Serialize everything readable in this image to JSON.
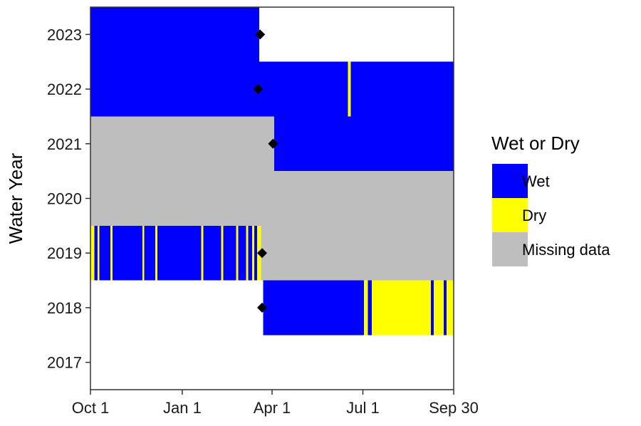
{
  "chart_data": {
    "type": "heatmap",
    "title": "",
    "xlabel": "",
    "ylabel": "Water Year",
    "x_unit": "day of water year (Oct 1 = 1)",
    "xlim": [
      1,
      365
    ],
    "x_ticks": [
      {
        "value": 1,
        "label": "Oct 1"
      },
      {
        "value": 93,
        "label": "Jan 1"
      },
      {
        "value": 183,
        "label": "Apr 1"
      },
      {
        "value": 274,
        "label": "Jul 1"
      },
      {
        "value": 365,
        "label": "Sep 30"
      }
    ],
    "y_ticks": [
      "2017",
      "2018",
      "2019",
      "2020",
      "2021",
      "2022",
      "2023"
    ],
    "grid": false,
    "legend": {
      "title": "Wet or Dry",
      "placement": "right",
      "entries": [
        {
          "key": "wet",
          "label": "Wet",
          "color": "#0000ff"
        },
        {
          "key": "dry",
          "label": "Dry",
          "color": "#ffff00"
        },
        {
          "key": "missing",
          "label": "Missing data",
          "color": "#bebebe"
        }
      ]
    },
    "rows": [
      {
        "year": "2023",
        "segments": [
          {
            "start": 1,
            "end": 170,
            "state": "wet"
          }
        ]
      },
      {
        "year": "2022",
        "segments": [
          {
            "start": 1,
            "end": 259,
            "state": "wet"
          },
          {
            "start": 259,
            "end": 262,
            "state": "dry"
          },
          {
            "start": 262,
            "end": 365,
            "state": "wet"
          }
        ]
      },
      {
        "year": "2021",
        "segments": [
          {
            "start": 1,
            "end": 185,
            "state": "missing"
          },
          {
            "start": 185,
            "end": 365,
            "state": "wet"
          }
        ]
      },
      {
        "year": "2020",
        "segments": [
          {
            "start": 1,
            "end": 365,
            "state": "missing"
          }
        ]
      },
      {
        "year": "2019",
        "segments": [
          {
            "start": 1,
            "end": 5,
            "state": "dry"
          },
          {
            "start": 5,
            "end": 8,
            "state": "wet"
          },
          {
            "start": 8,
            "end": 10,
            "state": "dry"
          },
          {
            "start": 10,
            "end": 21,
            "state": "wet"
          },
          {
            "start": 21,
            "end": 23,
            "state": "dry"
          },
          {
            "start": 23,
            "end": 53,
            "state": "wet"
          },
          {
            "start": 53,
            "end": 55,
            "state": "dry"
          },
          {
            "start": 55,
            "end": 66,
            "state": "wet"
          },
          {
            "start": 66,
            "end": 68,
            "state": "dry"
          },
          {
            "start": 68,
            "end": 112,
            "state": "wet"
          },
          {
            "start": 112,
            "end": 114,
            "state": "dry"
          },
          {
            "start": 114,
            "end": 132,
            "state": "wet"
          },
          {
            "start": 132,
            "end": 134,
            "state": "dry"
          },
          {
            "start": 134,
            "end": 147,
            "state": "wet"
          },
          {
            "start": 147,
            "end": 149,
            "state": "dry"
          },
          {
            "start": 149,
            "end": 157,
            "state": "wet"
          },
          {
            "start": 157,
            "end": 159,
            "state": "dry"
          },
          {
            "start": 159,
            "end": 163,
            "state": "wet"
          },
          {
            "start": 163,
            "end": 165,
            "state": "dry"
          },
          {
            "start": 165,
            "end": 168,
            "state": "wet"
          },
          {
            "start": 168,
            "end": 172,
            "state": "dry"
          },
          {
            "start": 172,
            "end": 365,
            "state": "missing"
          }
        ]
      },
      {
        "year": "2018",
        "segments": [
          {
            "start": 174,
            "end": 275,
            "state": "wet"
          },
          {
            "start": 275,
            "end": 279,
            "state": "dry"
          },
          {
            "start": 279,
            "end": 283,
            "state": "wet"
          },
          {
            "start": 283,
            "end": 342,
            "state": "dry"
          },
          {
            "start": 342,
            "end": 345,
            "state": "wet"
          },
          {
            "start": 345,
            "end": 355,
            "state": "dry"
          },
          {
            "start": 355,
            "end": 358,
            "state": "wet"
          },
          {
            "start": 358,
            "end": 365,
            "state": "dry"
          }
        ]
      },
      {
        "year": "2017",
        "segments": []
      }
    ],
    "markers": [
      {
        "year": "2023",
        "x": 171
      },
      {
        "year": "2022",
        "x": 169
      },
      {
        "year": "2021",
        "x": 184
      },
      {
        "year": "2019",
        "x": 173
      },
      {
        "year": "2018",
        "x": 173
      }
    ],
    "marker_shape": "diamond",
    "marker_color": "#000000"
  }
}
